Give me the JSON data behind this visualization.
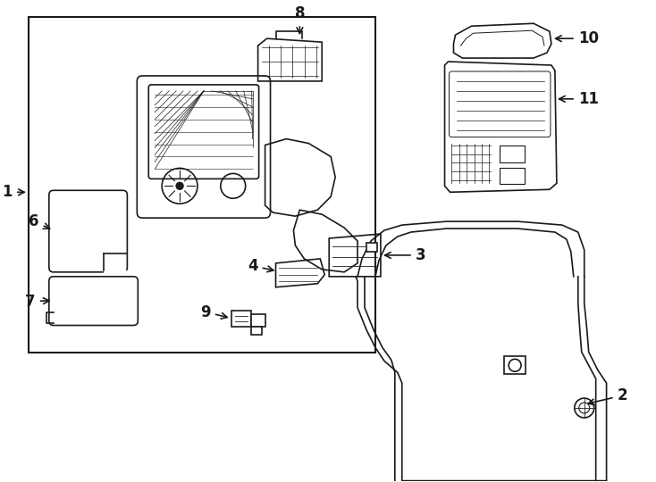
{
  "bg_color": "#ffffff",
  "line_color": "#1a1a1a",
  "figsize": [
    7.34,
    5.4
  ],
  "dpi": 100
}
